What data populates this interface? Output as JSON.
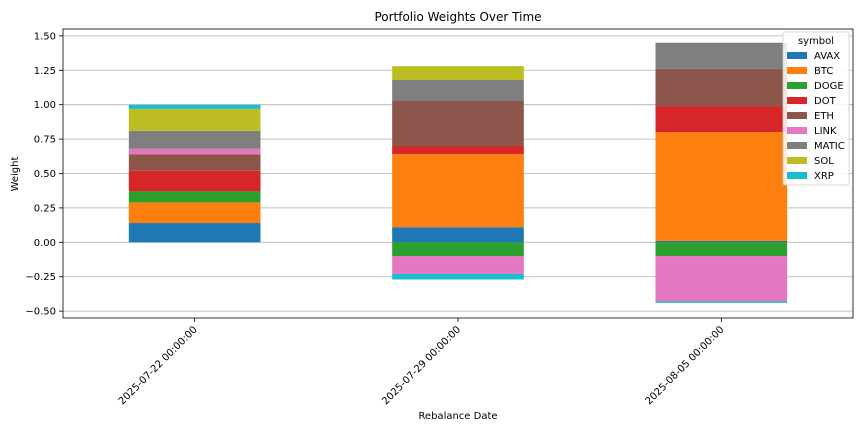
{
  "chart_data": {
    "type": "bar",
    "stacked": true,
    "title": "Portfolio Weights Over Time",
    "xlabel": "Rebalance Date",
    "ylabel": "Weight",
    "ylim": [
      -0.55,
      1.55
    ],
    "yticks": [
      -0.5,
      -0.25,
      0.0,
      0.25,
      0.5,
      0.75,
      1.0,
      1.25,
      1.5
    ],
    "ytick_labels": [
      "−0.50",
      "−0.25",
      "0.00",
      "0.25",
      "0.50",
      "0.75",
      "1.00",
      "1.25",
      "1.50"
    ],
    "grid": "horizontal",
    "categories": [
      "2025-07-22 00:00:00",
      "2025-07-29 00:00:00",
      "2025-08-05 00:00:00"
    ],
    "legend": {
      "title": "symbol",
      "placement": "top-right"
    },
    "series": [
      {
        "name": "AVAX",
        "color": "#1f77b4",
        "values": [
          0.14,
          0.11,
          0.01
        ]
      },
      {
        "name": "BTC",
        "color": "#ff7f0e",
        "values": [
          0.15,
          0.53,
          0.79
        ]
      },
      {
        "name": "DOGE",
        "color": "#2ca02c",
        "values": [
          0.08,
          -0.1,
          -0.1
        ]
      },
      {
        "name": "DOT",
        "color": "#d62728",
        "values": [
          0.15,
          0.06,
          0.19
        ]
      },
      {
        "name": "ETH",
        "color": "#8c564b",
        "values": [
          0.12,
          0.33,
          0.27
        ]
      },
      {
        "name": "LINK",
        "color": "#e377c2",
        "values": [
          0.04,
          -0.13,
          -0.33
        ]
      },
      {
        "name": "MATIC",
        "color": "#7f7f7f",
        "values": [
          0.13,
          0.15,
          0.19
        ]
      },
      {
        "name": "SOL",
        "color": "#bcbd22",
        "values": [
          0.16,
          0.1,
          0.0
        ]
      },
      {
        "name": "XRP",
        "color": "#17becf",
        "values": [
          0.03,
          -0.04,
          -0.01
        ]
      }
    ]
  }
}
